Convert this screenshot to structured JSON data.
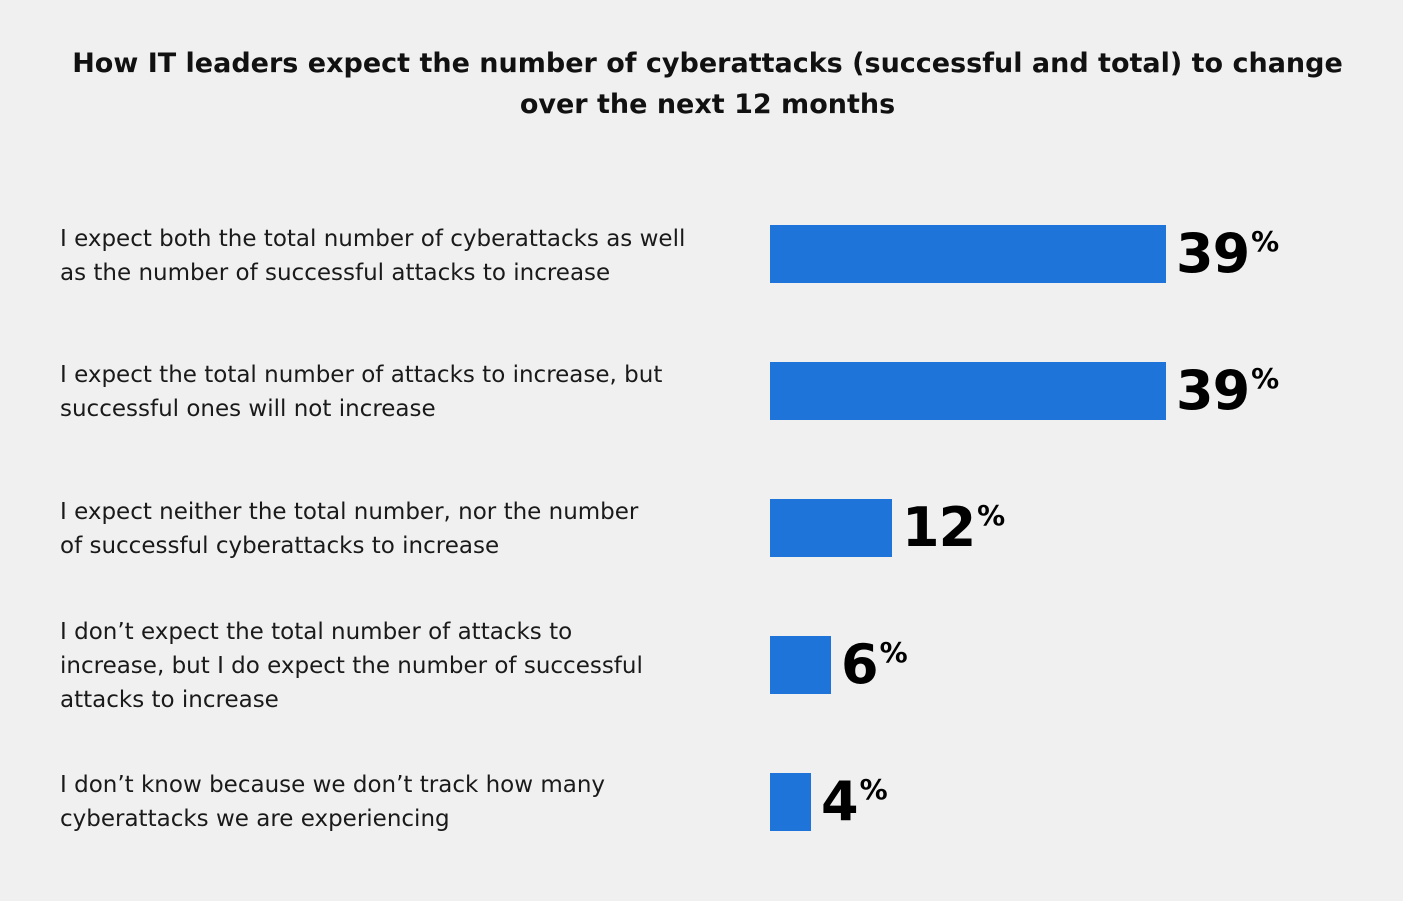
{
  "chart_data": {
    "type": "bar",
    "orientation": "horizontal",
    "title": "How IT leaders expect the number of cyberattacks (successful and total) to change over the next 12 months",
    "categories": [
      "I expect both the total number of cyberattacks as well as the number of successful attacks to increase",
      "I expect the total number of attacks to increase, but successful ones will not increase",
      "I expect neither the total number, nor the number of successful cyberattacks to increase",
      "I don’t expect the total number of attacks to increase, but I do expect the number of successful attacks to increase",
      "I don’t know because we don’t track how many cyberattacks we are experiencing"
    ],
    "values": [
      39,
      39,
      12,
      6,
      4
    ],
    "value_suffix": "%",
    "xlim": [
      0,
      39
    ],
    "xlabel": "",
    "ylabel": "",
    "grid": false,
    "bar_color": "#1e74d9"
  }
}
